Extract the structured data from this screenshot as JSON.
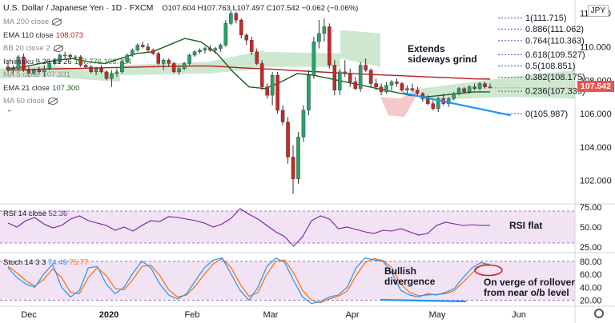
{
  "header": {
    "title": "U.S. Dollar / Japanese Yen · 1D · FXCM",
    "ohlc": "O107.604 H107.763 L107.497 C107.542 −0.062 (−0.06%)"
  },
  "currency_badge": "JPY",
  "last_price": "107.542",
  "legend": [
    {
      "label": "MA 200 close",
      "value": "",
      "color": "#8c8c8c"
    },
    {
      "label": "EMA 110 close",
      "value": "108.073",
      "color": "#b71c1c"
    },
    {
      "label": "BB 20 close 2",
      "value": "",
      "color": "#8c8c8c"
    },
    {
      "label": "Ichimoku 9 26 52 26",
      "value": "107.776  106.704",
      "color": "#2e7d32"
    },
    {
      "label": "MA 5 close",
      "value": "107.331",
      "color": "#8c8c8c"
    },
    {
      "label": "EMA 21 close",
      "value": "107.300",
      "color": "#1b5e20"
    },
    {
      "label": "MA 50 close",
      "value": "",
      "color": "#8c8c8c"
    }
  ],
  "annotations": {
    "extends_1": "Extends",
    "extends_2": "sideways grind",
    "rsi_flat": "RSI flat",
    "bull_1": "Bullish",
    "bull_2": "divergence",
    "rollover_1": "On verge of rollover",
    "rollover_2": "from near o/b level"
  },
  "rsi_label": {
    "text": "RSI 14 close",
    "value": "52.36"
  },
  "stoch_label": {
    "text": "Stoch 14 3 3",
    "k": "74.49",
    "d": "75.77"
  },
  "colors": {
    "up": "#26a269",
    "down": "#c62828",
    "ema110": "#b71c1c",
    "ema21": "#1b5e20",
    "cloud_bull": "#a5d6a7",
    "cloud_bear": "#ef9a9a",
    "fib": "#3f51b5",
    "trendline": "#2196f3",
    "rsi": "#7b1fa2",
    "stoch_k": "#2196f3",
    "stoch_d": "#ff6d00",
    "osc_band": "#e1bee7"
  },
  "chart_data": [
    {
      "type": "candlestick",
      "title": "U.S. Dollar / Japanese Yen · 1D · FXCM",
      "y_axis": {
        "ticks": [
          102.0,
          104.0,
          106.0,
          108.0,
          110.0,
          112.0
        ],
        "tick_labels": [
          "102.000",
          "104.000",
          "106.000",
          "108.000",
          "110.000",
          "112.000"
        ]
      },
      "x_axis": {
        "tick_labels": [
          "Dec",
          "2020",
          "Feb",
          "Mar",
          "Apr",
          "May",
          "Jun"
        ]
      },
      "ylim": [
        100.6,
        112.8
      ],
      "candles": [
        [
          108.8,
          109.2,
          108.5,
          108.6
        ],
        [
          108.6,
          108.9,
          108.3,
          108.7
        ],
        [
          108.7,
          109.5,
          108.6,
          109.4
        ],
        [
          109.4,
          109.6,
          108.5,
          108.6
        ],
        [
          108.6,
          108.8,
          108.2,
          108.4
        ],
        [
          108.4,
          108.7,
          108.3,
          108.6
        ],
        [
          108.6,
          108.8,
          108.4,
          108.5
        ],
        [
          108.5,
          108.9,
          108.2,
          108.7
        ],
        [
          108.7,
          109.2,
          108.6,
          109.0
        ],
        [
          109.0,
          109.3,
          108.9,
          109.1
        ],
        [
          109.1,
          109.6,
          109.0,
          109.5
        ],
        [
          109.5,
          109.7,
          109.3,
          109.5
        ],
        [
          109.5,
          109.6,
          109.3,
          109.4
        ],
        [
          109.4,
          109.5,
          109.2,
          109.4
        ],
        [
          109.4,
          109.5,
          108.8,
          108.9
        ],
        [
          108.9,
          109.0,
          108.7,
          108.8
        ],
        [
          108.8,
          108.9,
          108.4,
          108.5
        ],
        [
          108.5,
          108.8,
          108.3,
          108.7
        ],
        [
          108.7,
          108.9,
          108.4,
          108.5
        ],
        [
          108.5,
          108.6,
          108.0,
          108.1
        ],
        [
          108.1,
          108.6,
          107.6,
          108.4
        ],
        [
          108.4,
          108.7,
          108.2,
          108.5
        ],
        [
          108.5,
          109.2,
          108.4,
          109.1
        ],
        [
          109.1,
          109.6,
          109.0,
          109.5
        ],
        [
          109.5,
          109.9,
          109.4,
          109.8
        ],
        [
          109.8,
          110.2,
          109.7,
          110.1
        ],
        [
          110.1,
          110.3,
          109.9,
          110.0
        ],
        [
          110.0,
          110.2,
          109.7,
          109.8
        ],
        [
          109.8,
          109.9,
          109.5,
          109.6
        ],
        [
          109.6,
          109.7,
          108.9,
          109.0
        ],
        [
          109.0,
          109.3,
          108.6,
          109.2
        ],
        [
          109.2,
          109.3,
          108.8,
          109.0
        ],
        [
          109.0,
          109.1,
          108.4,
          108.5
        ],
        [
          108.5,
          108.9,
          108.3,
          108.7
        ],
        [
          108.7,
          109.1,
          108.6,
          109.0
        ],
        [
          109.0,
          109.6,
          108.9,
          109.5
        ],
        [
          109.5,
          109.8,
          109.4,
          109.7
        ],
        [
          109.7,
          109.9,
          109.6,
          109.8
        ],
        [
          109.8,
          110.0,
          109.6,
          109.9
        ],
        [
          109.9,
          110.1,
          109.7,
          109.8
        ],
        [
          109.8,
          110.0,
          109.6,
          109.9
        ],
        [
          109.9,
          110.2,
          109.7,
          110.1
        ],
        [
          110.1,
          111.6,
          110.0,
          111.4
        ],
        [
          111.4,
          112.2,
          111.3,
          112.0
        ],
        [
          112.0,
          112.1,
          111.4,
          111.6
        ],
        [
          111.6,
          111.7,
          110.5,
          110.7
        ],
        [
          110.7,
          110.8,
          110.1,
          110.4
        ],
        [
          110.4,
          110.6,
          109.5,
          109.7
        ],
        [
          109.7,
          109.9,
          108.9,
          109.0
        ],
        [
          109.0,
          109.2,
          107.4,
          107.6
        ],
        [
          107.6,
          107.8,
          106.9,
          107.1
        ],
        [
          107.1,
          108.5,
          106.5,
          108.3
        ],
        [
          108.3,
          108.5,
          106.0,
          106.2
        ],
        [
          106.2,
          106.5,
          105.3,
          105.5
        ],
        [
          105.5,
          105.8,
          103.0,
          103.4
        ],
        [
          103.4,
          104.1,
          101.2,
          102.1
        ],
        [
          102.1,
          104.9,
          101.8,
          104.6
        ],
        [
          104.6,
          106.5,
          104.3,
          106.2
        ],
        [
          106.2,
          108.6,
          105.9,
          108.3
        ],
        [
          108.3,
          110.6,
          108.1,
          110.3
        ],
        [
          110.3,
          111.6,
          109.9,
          110.8
        ],
        [
          110.8,
          111.7,
          110.3,
          111.2
        ],
        [
          111.2,
          111.4,
          108.7,
          108.9
        ],
        [
          108.9,
          109.2,
          107.1,
          107.4
        ],
        [
          107.4,
          108.7,
          107.1,
          108.5
        ],
        [
          108.5,
          109.2,
          108.2,
          108.4
        ],
        [
          108.4,
          108.7,
          107.6,
          107.9
        ],
        [
          107.9,
          108.2,
          107.4,
          107.5
        ],
        [
          107.5,
          109.1,
          107.3,
          108.9
        ],
        [
          108.9,
          109.3,
          108.5,
          108.6
        ],
        [
          108.6,
          108.7,
          107.6,
          107.8
        ],
        [
          107.8,
          108.1,
          107.4,
          107.6
        ],
        [
          107.6,
          107.8,
          107.1,
          107.3
        ],
        [
          107.3,
          107.9,
          107.2,
          107.7
        ],
        [
          107.7,
          108.0,
          107.4,
          107.9
        ],
        [
          107.9,
          108.1,
          107.6,
          107.8
        ],
        [
          107.8,
          107.9,
          107.3,
          107.4
        ],
        [
          107.4,
          107.7,
          107.2,
          107.5
        ],
        [
          107.5,
          107.8,
          107.3,
          107.4
        ],
        [
          107.4,
          107.6,
          107.1,
          107.2
        ],
        [
          107.2,
          107.3,
          106.7,
          106.9
        ],
        [
          106.9,
          107.1,
          106.5,
          106.6
        ],
        [
          106.6,
          106.8,
          106.2,
          106.3
        ],
        [
          106.3,
          107.0,
          106.1,
          106.9
        ],
        [
          106.9,
          107.2,
          106.5,
          106.6
        ],
        [
          106.6,
          107.0,
          106.4,
          106.9
        ],
        [
          106.9,
          107.3,
          106.8,
          107.2
        ],
        [
          107.2,
          107.6,
          107.1,
          107.5
        ],
        [
          107.5,
          107.6,
          107.2,
          107.3
        ],
        [
          107.3,
          107.7,
          107.2,
          107.6
        ],
        [
          107.6,
          107.8,
          107.4,
          107.5
        ],
        [
          107.5,
          107.9,
          107.4,
          107.8
        ],
        [
          107.8,
          107.9,
          107.5,
          107.6
        ],
        [
          107.6,
          107.8,
          107.5,
          107.54
        ]
      ],
      "ema110": [
        108.6,
        108.62,
        108.66,
        108.68,
        108.7,
        108.72,
        108.74,
        108.76,
        108.78,
        108.8,
        108.82,
        108.84,
        108.85,
        108.85,
        108.8,
        108.74,
        108.7,
        108.66,
        108.6,
        108.55,
        108.5,
        108.45,
        108.4,
        108.36,
        108.32,
        108.28,
        108.24,
        108.2,
        108.16,
        108.12,
        108.08,
        108.07
      ],
      "ema21": [
        108.7,
        108.8,
        109.0,
        109.2,
        109.3,
        109.1,
        109.0,
        109.3,
        109.6,
        109.7,
        110.1,
        110.5,
        110.3,
        109.6,
        108.5,
        107.6,
        107.5,
        107.9,
        108.4,
        108.3,
        108.1,
        107.9,
        107.7,
        107.5,
        107.3,
        107.1,
        107.0,
        107.1,
        107.2,
        107.3,
        107.3
      ],
      "fib_levels": [
        {
          "label": "1",
          "price": 111.715
        },
        {
          "label": "0.886",
          "price": 111.062
        },
        {
          "label": "0.764",
          "price": 110.363
        },
        {
          "label": "0.618",
          "price": 109.527
        },
        {
          "label": "0.5",
          "price": 108.851
        },
        {
          "label": "0.382",
          "price": 108.175
        },
        {
          "label": "0.236",
          "price": 107.339
        },
        {
          "label": "0",
          "price": 105.987
        }
      ],
      "trendline": {
        "from": [
          80,
          107.0
        ],
        "to": [
          97,
          105.9
        ]
      }
    },
    {
      "type": "line",
      "title": "RSI 14 close",
      "ylim": [
        18,
        78
      ],
      "y_axis": {
        "ticks": [
          25.0,
          50.0,
          75.0
        ],
        "tick_labels": [
          "25.00",
          "50.00",
          "75.00"
        ]
      },
      "bands": [
        30,
        70
      ],
      "series": [
        {
          "name": "RSI 14 close",
          "values": [
            55,
            50,
            58,
            62,
            54,
            49,
            52,
            60,
            64,
            58,
            55,
            52,
            46,
            50,
            45,
            52,
            58,
            57,
            63,
            62,
            60,
            58,
            55,
            50,
            54,
            61,
            73,
            66,
            60,
            52,
            44,
            38,
            26,
            38,
            58,
            64,
            60,
            48,
            50,
            47,
            44,
            42,
            46,
            45,
            48,
            44,
            40,
            42,
            52,
            56,
            54,
            52,
            53,
            52,
            52.36
          ]
        }
      ]
    },
    {
      "type": "line",
      "title": "Stoch 14 3 3",
      "ylim": [
        12,
        92
      ],
      "y_axis": {
        "ticks": [
          20.0,
          40.0,
          60.0,
          80.0
        ],
        "tick_labels": [
          "20.00",
          "40.00",
          "60.00",
          "80.00"
        ]
      },
      "bands": [
        20,
        80
      ],
      "series": [
        {
          "name": "%K",
          "values": [
            70,
            55,
            45,
            40,
            60,
            75,
            40,
            25,
            35,
            70,
            72,
            45,
            30,
            40,
            62,
            80,
            70,
            45,
            28,
            22,
            30,
            50,
            70,
            82,
            85,
            60,
            35,
            20,
            40,
            72,
            85,
            78,
            50,
            25,
            15,
            18,
            25,
            28,
            40,
            70,
            85,
            82,
            80,
            62,
            35,
            28,
            25,
            30,
            28,
            32,
            38,
            55,
            70,
            78,
            74.49
          ]
        },
        {
          "name": "%D",
          "values": [
            72,
            62,
            50,
            42,
            52,
            68,
            55,
            32,
            30,
            55,
            70,
            58,
            38,
            36,
            52,
            72,
            74,
            58,
            36,
            25,
            28,
            42,
            60,
            76,
            84,
            70,
            45,
            26,
            32,
            60,
            80,
            82,
            62,
            35,
            20,
            16,
            22,
            26,
            34,
            58,
            78,
            84,
            81,
            70,
            45,
            32,
            27,
            28,
            29,
            30,
            35,
            48,
            62,
            74,
            75.77
          ]
        }
      ]
    }
  ]
}
